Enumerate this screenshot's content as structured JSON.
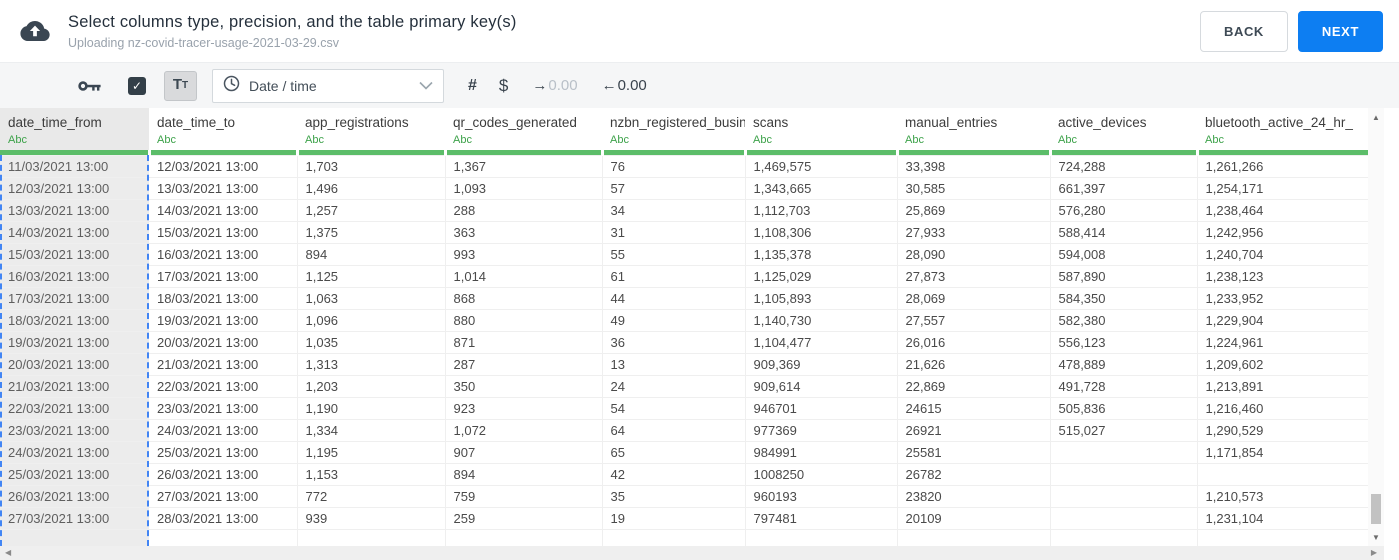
{
  "header": {
    "title": "Select columns type, precision, and the table primary key(s)",
    "subtitle": "Uploading nz-covid-tracer-usage-2021-03-29.csv",
    "back_label": "BACK",
    "next_label": "NEXT"
  },
  "toolbar": {
    "checkbox_checked": true,
    "text_type_parts": [
      "T",
      "t"
    ],
    "type_select_value": "Date / time",
    "decimal_value": "0.00"
  },
  "icons": {
    "upload_cloud": "cloud-with-up-arrow",
    "primary_key": "key",
    "clock": "clock-face",
    "chevron_down": "chevron",
    "check": "✓",
    "number": "#",
    "currency": "$",
    "arrow_right": "→",
    "arrow_left": "←",
    "scroll_up": "▲",
    "scroll_down": "▼",
    "scroll_left": "◀",
    "scroll_right": "▶"
  },
  "colors": {
    "accent_blue": "#0d7ef2",
    "selection_blue": "#4285f4",
    "type_green": "#3da24a",
    "bar_green": "#5cbd69",
    "icon_charcoal": "#3a4652"
  },
  "table": {
    "selected_column_index": 0,
    "columns": [
      {
        "name": "date_time_from",
        "type_label": "Abc"
      },
      {
        "name": "date_time_to",
        "type_label": "Abc"
      },
      {
        "name": "app_registrations",
        "type_label": "Abc"
      },
      {
        "name": "qr_codes_generated",
        "type_label": "Abc"
      },
      {
        "name": "nzbn_registered_busine",
        "type_label": "Abc"
      },
      {
        "name": "scans",
        "type_label": "Abc"
      },
      {
        "name": "manual_entries",
        "type_label": "Abc"
      },
      {
        "name": "active_devices",
        "type_label": "Abc"
      },
      {
        "name": "bluetooth_active_24_hr_",
        "type_label": "Abc"
      }
    ],
    "rows": [
      [
        "11/03/2021 13:00",
        "12/03/2021 13:00",
        "1,703",
        "1,367",
        "76",
        "1,469,575",
        "33,398",
        "724,288",
        "1,261,266"
      ],
      [
        "12/03/2021 13:00",
        "13/03/2021 13:00",
        "1,496",
        "1,093",
        "57",
        "1,343,665",
        "30,585",
        "661,397",
        "1,254,171"
      ],
      [
        "13/03/2021 13:00",
        "14/03/2021 13:00",
        "1,257",
        "288",
        "34",
        "1,112,703",
        "25,869",
        "576,280",
        "1,238,464"
      ],
      [
        "14/03/2021 13:00",
        "15/03/2021 13:00",
        "1,375",
        "363",
        "31",
        "1,108,306",
        "27,933",
        "588,414",
        "1,242,956"
      ],
      [
        "15/03/2021 13:00",
        "16/03/2021 13:00",
        "894",
        "993",
        "55",
        "1,135,378",
        "28,090",
        "594,008",
        "1,240,704"
      ],
      [
        "16/03/2021 13:00",
        "17/03/2021 13:00",
        "1,125",
        "1,014",
        "61",
        "1,125,029",
        "27,873",
        "587,890",
        "1,238,123"
      ],
      [
        "17/03/2021 13:00",
        "18/03/2021 13:00",
        "1,063",
        "868",
        "44",
        "1,105,893",
        "28,069",
        "584,350",
        "1,233,952"
      ],
      [
        "18/03/2021 13:00",
        "19/03/2021 13:00",
        "1,096",
        "880",
        "49",
        "1,140,730",
        "27,557",
        "582,380",
        "1,229,904"
      ],
      [
        "19/03/2021 13:00",
        "20/03/2021 13:00",
        "1,035",
        "871",
        "36",
        "1,104,477",
        "26,016",
        "556,123",
        "1,224,961"
      ],
      [
        "20/03/2021 13:00",
        "21/03/2021 13:00",
        "1,313",
        "287",
        "13",
        "909,369",
        "21,626",
        "478,889",
        "1,209,602"
      ],
      [
        "21/03/2021 13:00",
        "22/03/2021 13:00",
        "1,203",
        "350",
        "24",
        "909,614",
        "22,869",
        "491,728",
        "1,213,891"
      ],
      [
        "22/03/2021 13:00",
        "23/03/2021 13:00",
        "1,190",
        "923",
        "54",
        "946701",
        "24615",
        "505,836",
        "1,216,460"
      ],
      [
        "23/03/2021 13:00",
        "24/03/2021 13:00",
        "1,334",
        "1,072",
        "64",
        "977369",
        "26921",
        "515,027",
        "1,290,529"
      ],
      [
        "24/03/2021 13:00",
        "25/03/2021 13:00",
        "1,195",
        "907",
        "65",
        "984991",
        "25581",
        "",
        "1,171,854"
      ],
      [
        "25/03/2021 13:00",
        "26/03/2021 13:00",
        "1,153",
        "894",
        "42",
        "1008250",
        "26782",
        "",
        ""
      ],
      [
        "26/03/2021 13:00",
        "27/03/2021 13:00",
        "772",
        "759",
        "35",
        "960193",
        "23820",
        "",
        "1,210,573"
      ],
      [
        "27/03/2021 13:00",
        "28/03/2021 13:00",
        "939",
        "259",
        "19",
        "797481",
        "20109",
        "",
        "1,231,104"
      ]
    ]
  }
}
